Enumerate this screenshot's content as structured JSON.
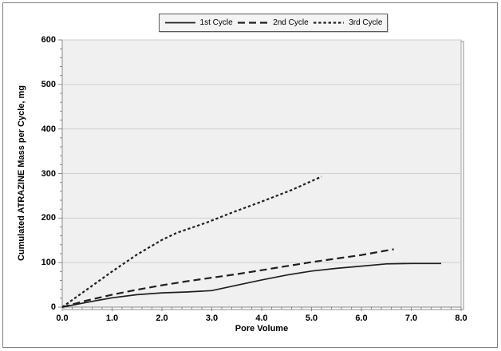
{
  "chart_data": {
    "type": "line",
    "title": "",
    "xlabel": "Pore Volume",
    "ylabel": "Cumulated ATRAZINE Mass per Cycle, mg",
    "xlim": [
      0,
      8
    ],
    "ylim": [
      0,
      600
    ],
    "xtick_labels": [
      "0.0",
      "1.0",
      "2.0",
      "3.0",
      "4.0",
      "5.0",
      "6.0",
      "7.0",
      "8.0"
    ],
    "ytick_labels": [
      "0",
      "100",
      "200",
      "300",
      "400",
      "500",
      "600"
    ],
    "x_minor_step": 0.2,
    "y_minor_step": 20,
    "grid": "horizontal-major-only",
    "legend_position": "top-center",
    "series": [
      {
        "name": "1st Cycle",
        "line_style": "solid",
        "points": [
          [
            0,
            0
          ],
          [
            0.5,
            11
          ],
          [
            1.0,
            21
          ],
          [
            1.5,
            28
          ],
          [
            2.0,
            32
          ],
          [
            2.5,
            34
          ],
          [
            3.0,
            37
          ],
          [
            3.5,
            49
          ],
          [
            4.0,
            61
          ],
          [
            4.5,
            72
          ],
          [
            5.0,
            81
          ],
          [
            5.5,
            87
          ],
          [
            6.0,
            92
          ],
          [
            6.5,
            97
          ],
          [
            7.0,
            98
          ],
          [
            7.6,
            98
          ]
        ]
      },
      {
        "name": "2nd Cycle",
        "line_style": "dashed",
        "points": [
          [
            0,
            0
          ],
          [
            0.5,
            15
          ],
          [
            1.0,
            28
          ],
          [
            1.5,
            39
          ],
          [
            2.0,
            49
          ],
          [
            2.5,
            58
          ],
          [
            3.0,
            66
          ],
          [
            3.5,
            74
          ],
          [
            4.0,
            83
          ],
          [
            4.5,
            92
          ],
          [
            5.0,
            101
          ],
          [
            5.5,
            109
          ],
          [
            6.0,
            117
          ],
          [
            6.65,
            130
          ]
        ]
      },
      {
        "name": "3rd Cycle",
        "line_style": "short-dash",
        "points": [
          [
            0,
            0
          ],
          [
            0.5,
            40
          ],
          [
            1.0,
            80
          ],
          [
            1.5,
            118
          ],
          [
            2.0,
            151
          ],
          [
            2.3,
            167
          ],
          [
            2.9,
            190
          ],
          [
            3.4,
            212
          ],
          [
            4.0,
            237
          ],
          [
            4.6,
            263
          ],
          [
            5.2,
            293
          ]
        ]
      }
    ],
    "colors": {
      "line": "#1f1f1f",
      "plot_fill": "#f0f0f0",
      "plot_border": "#a6a6a6",
      "gridline": "#cfcfcf",
      "axis": "#898989",
      "legend_border": "#595959",
      "frame_border": "#7f7f7f",
      "text": "#000000"
    }
  }
}
